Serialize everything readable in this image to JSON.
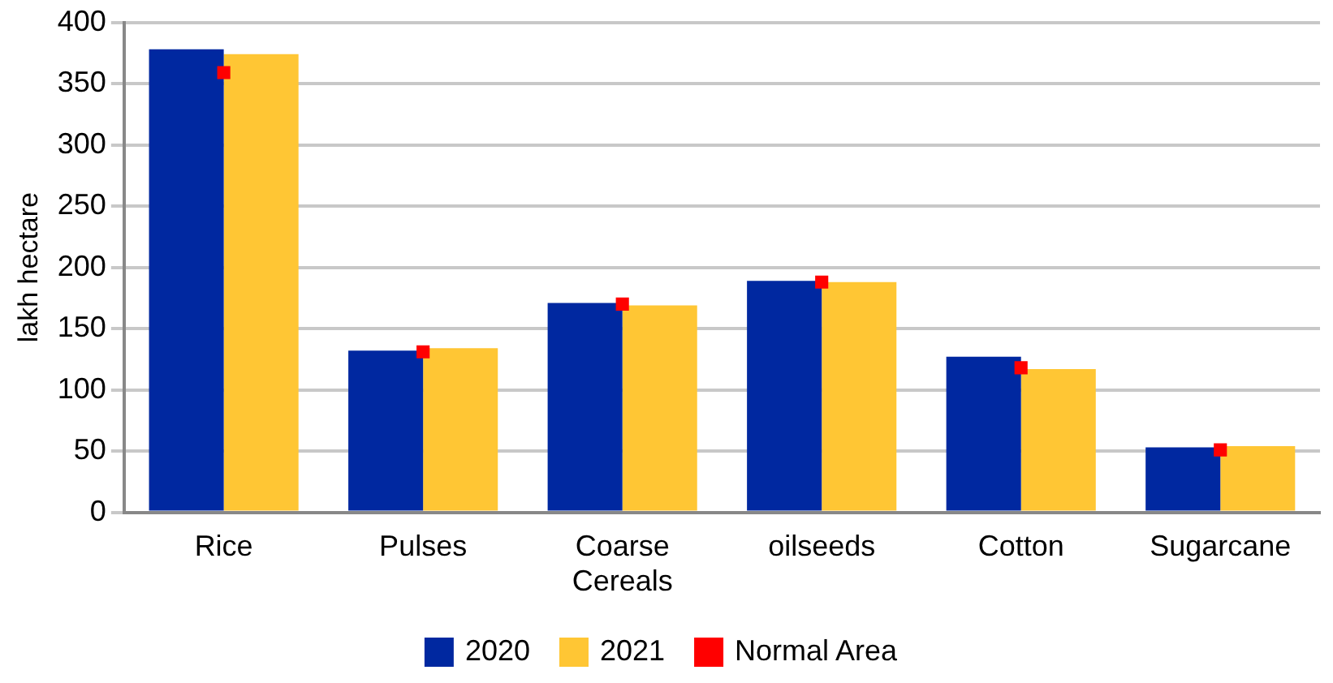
{
  "chart_data": {
    "type": "bar",
    "ylabel": "lakh hectare",
    "categories": [
      "Rice",
      "Pulses",
      "Coarse Cereals",
      "oilseeds",
      "Cotton",
      "Sugarcane"
    ],
    "series": [
      {
        "name": "2020",
        "color": "#0028a0",
        "values": [
          378,
          132,
          171,
          189,
          127,
          53
        ]
      },
      {
        "name": "2021",
        "color": "#ffc634",
        "values": [
          374,
          134,
          169,
          188,
          117,
          54
        ]
      },
      {
        "name": "Normal Area",
        "type": "scatter",
        "marker": "square",
        "color": "#ff0000",
        "values": [
          359,
          131,
          170,
          188,
          118,
          51
        ]
      }
    ],
    "ylim": [
      0,
      400
    ],
    "yticks": [
      0,
      50,
      100,
      150,
      200,
      250,
      300,
      350,
      400
    ],
    "grid": "y",
    "legend": "bottom"
  }
}
